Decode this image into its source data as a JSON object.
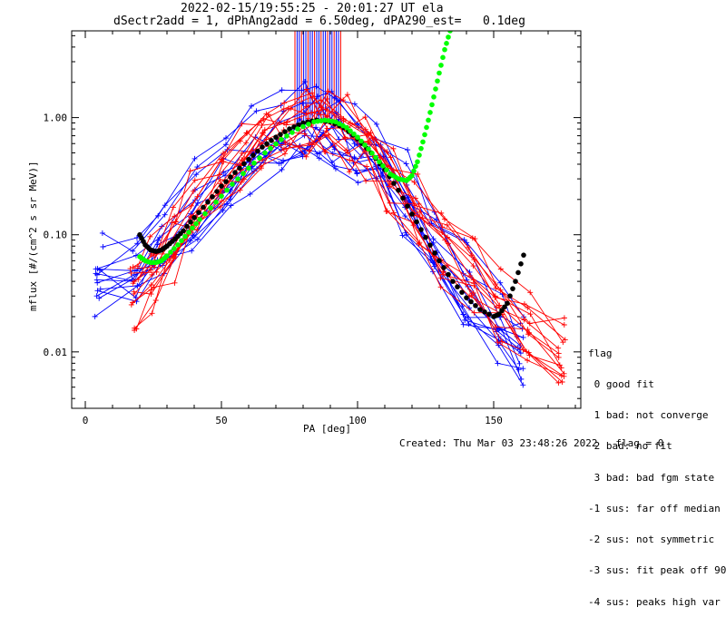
{
  "header": {
    "title_line1": "2022-02-15/19:55:25 - 20:01:27 UT ela",
    "title_line2": "dSectr2add = 1, dPhAng2add = 6.50deg, dPA290_est=   0.1deg"
  },
  "legend": {
    "title": "flag",
    "entries": [
      " 0 good fit",
      " 1 bad: not converge",
      " 2 bad: no fit",
      " 3 bad: bad fgm state",
      "-1 sus: far off median",
      "-2 sus: not symmetric",
      "-3 sus: fit peak off 90",
      "-4 sus: peaks high var"
    ]
  },
  "footer": {
    "created": "Created: Thu Mar 03 23:48:26 2022",
    "flag": "flag = 0"
  },
  "chart_data": {
    "type": "line",
    "xlabel": "PA [deg]",
    "ylabel": "mflux [#/(cm^2 s sr MeV)]",
    "xlim": [
      -5,
      182
    ],
    "ylim": [
      0.0033,
      5.5
    ],
    "yscale": "log",
    "x_ticks": [
      0,
      50,
      100,
      150
    ],
    "x_tick_labels": [
      "0",
      "50",
      "100",
      "150"
    ],
    "y_ticks": [
      0.01,
      0.1,
      1.0
    ],
    "y_tick_labels": [
      "0.01",
      "0.10",
      "1.00"
    ],
    "series": [
      {
        "color": "#0000ff",
        "style": "lines+plus",
        "x": [
          5,
          18,
          28,
          40,
          52,
          62,
          72,
          80,
          86,
          92,
          100,
          108,
          118,
          128,
          140,
          152,
          160
        ],
        "y": [
          0.045,
          0.05,
          0.09,
          0.18,
          0.35,
          0.55,
          0.75,
          0.88,
          0.92,
          0.85,
          0.68,
          0.45,
          0.2,
          0.085,
          0.035,
          0.018,
          0.012
        ]
      },
      {
        "color": "#ff0000",
        "style": "lines+plus",
        "x": [
          18,
          25,
          32,
          40,
          50,
          58,
          66,
          74,
          82,
          88,
          96,
          104,
          112,
          122,
          132,
          142,
          152,
          162,
          175
        ],
        "y": [
          0.03,
          0.045,
          0.08,
          0.15,
          0.28,
          0.48,
          0.68,
          0.82,
          0.9,
          0.88,
          0.75,
          0.55,
          0.32,
          0.15,
          0.07,
          0.04,
          0.025,
          0.015,
          0.009
        ]
      },
      {
        "color": "#000000",
        "style": "dots",
        "name": "fit",
        "x": [
          20,
          22,
          24,
          26,
          28,
          30,
          33,
          36,
          40,
          45,
          50,
          55,
          60,
          65,
          70,
          75,
          80,
          85,
          90,
          95,
          100,
          105,
          110,
          115,
          120,
          125,
          130,
          135,
          140,
          145,
          150,
          152,
          155,
          158,
          161
        ],
        "y": [
          0.1,
          0.082,
          0.074,
          0.072,
          0.074,
          0.08,
          0.092,
          0.108,
          0.14,
          0.19,
          0.26,
          0.34,
          0.44,
          0.56,
          0.68,
          0.8,
          0.9,
          0.95,
          0.92,
          0.82,
          0.66,
          0.5,
          0.36,
          0.24,
          0.15,
          0.095,
          0.06,
          0.04,
          0.029,
          0.023,
          0.02,
          0.021,
          0.026,
          0.04,
          0.067
        ]
      },
      {
        "color": "#00ff00",
        "style": "dots",
        "name": "fit-green",
        "x": [
          20,
          22,
          24,
          26,
          28,
          30,
          34,
          38,
          42,
          48,
          54,
          60,
          66,
          72,
          78,
          84,
          88,
          92,
          96,
          100,
          104,
          108,
          112,
          115,
          118,
          120,
          122,
          124,
          126,
          128,
          130,
          132,
          134
        ],
        "y": [
          0.065,
          0.06,
          0.058,
          0.058,
          0.06,
          0.066,
          0.082,
          0.105,
          0.135,
          0.19,
          0.27,
          0.37,
          0.5,
          0.65,
          0.8,
          0.92,
          0.95,
          0.92,
          0.82,
          0.68,
          0.54,
          0.42,
          0.33,
          0.3,
          0.29,
          0.32,
          0.42,
          0.62,
          0.95,
          1.5,
          2.4,
          3.8,
          5.5
        ]
      }
    ]
  }
}
